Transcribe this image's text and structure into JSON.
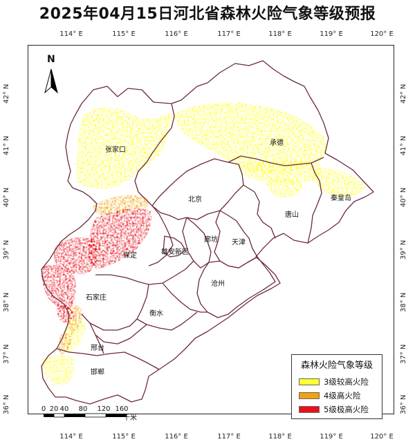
{
  "title": "2025年04月15日河北省森林火险气象等级预报",
  "axes": {
    "top": [
      "114° E",
      "115° E",
      "116° E",
      "117° E",
      "118° E",
      "119° E",
      "120° E"
    ],
    "bottom": [
      "114° E",
      "115° E",
      "116° E",
      "117° E",
      "118° E",
      "119° E",
      "120° E"
    ],
    "left": [
      "42° N",
      "41° N",
      "40° N",
      "39° N",
      "38° N",
      "37° N",
      "36° N"
    ],
    "right": [
      "42° N",
      "41° N",
      "40° N",
      "39° N",
      "38° N",
      "37° N",
      "36° N"
    ]
  },
  "north_arrow_label": "N",
  "cities": {
    "zhangjiakou": "张家口",
    "chengde": "承德",
    "beijing": "北京",
    "qinhuangdao": "秦皇岛",
    "tangshan": "唐山",
    "langfang": "廊坊",
    "tianjin": "天津",
    "xiongan": "雄安新区",
    "baoding": "保定",
    "cangzhou": "沧州",
    "shijiazhuang": "石家庄",
    "hengshui": "衡水",
    "xingtai": "邢台",
    "handan": "邯郸"
  },
  "legend": {
    "title": "森林火险气象等级",
    "items": [
      {
        "label": "3级较高火险",
        "color": "#ffff33"
      },
      {
        "label": "4级高火险",
        "color": "#f5a00f"
      },
      {
        "label": "5级极高火险",
        "color": "#e8111b"
      }
    ]
  },
  "scalebar": {
    "labels": [
      "0",
      "20",
      "40",
      "80",
      "120",
      "160"
    ],
    "unit": "千米"
  },
  "colors": {
    "boundary": "#6b2a3a",
    "level3": "#ffff33",
    "level4": "#f5a00f",
    "level5": "#e8111b"
  }
}
